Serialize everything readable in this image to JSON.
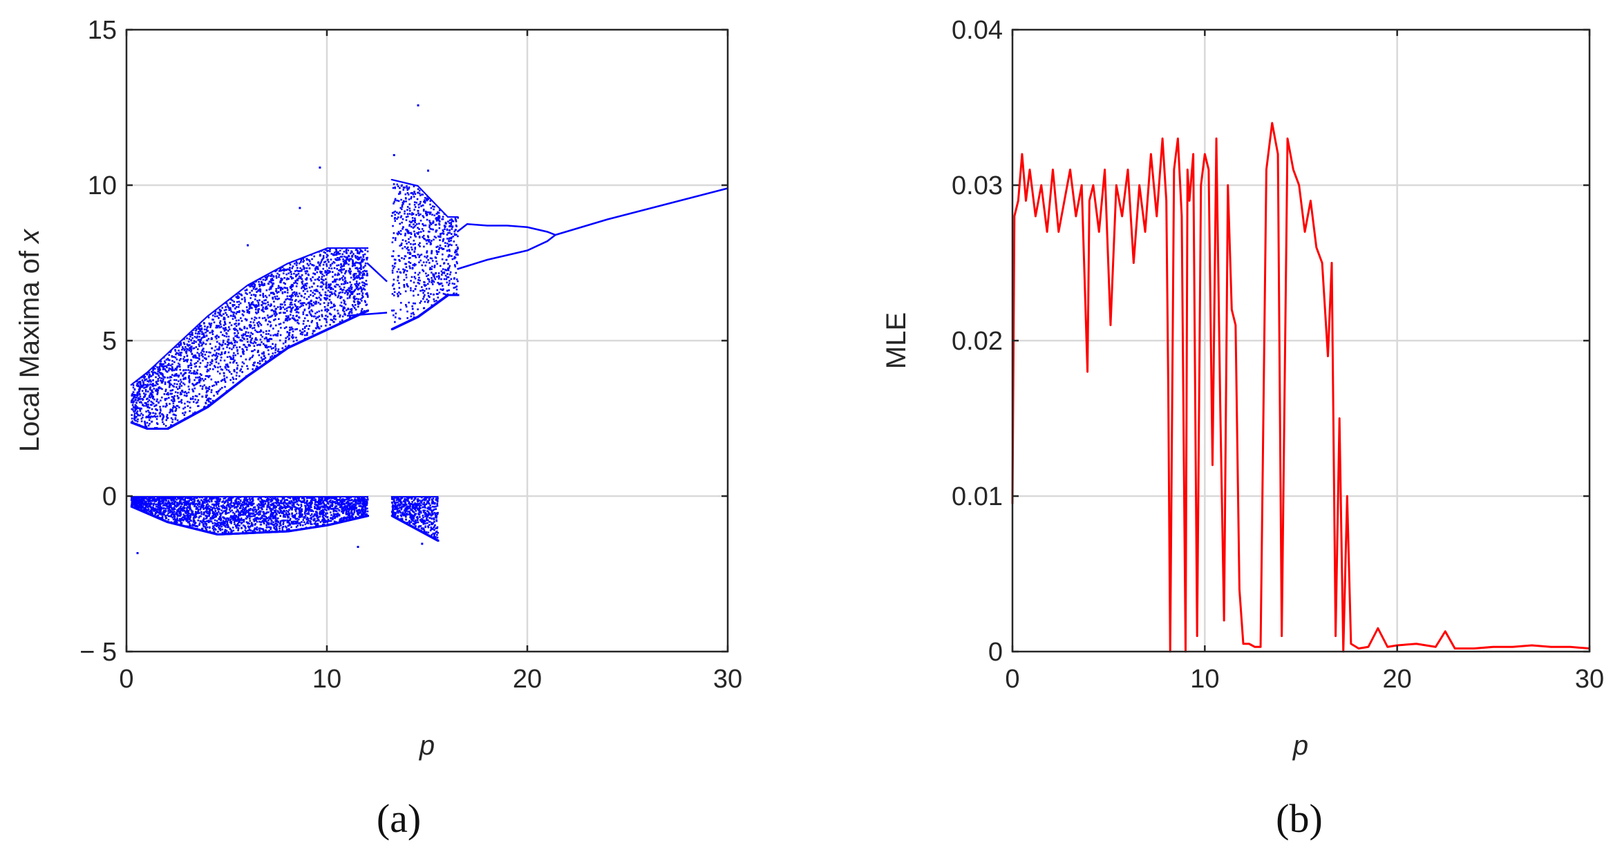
{
  "chart_data": [
    {
      "type": "scatter",
      "panel": "a",
      "caption": "(a)",
      "title": "",
      "xlabel": "p",
      "ylabel": "Local Maxima of",
      "ylabel_var": "x",
      "xlim": [
        0,
        30
      ],
      "ylim": [
        -5,
        15
      ],
      "xticks": [
        0,
        10,
        20,
        30
      ],
      "yticks": [
        -5,
        0,
        5,
        10,
        15
      ],
      "ytick_labels": [
        "− 5",
        "0",
        "5",
        "10",
        "15"
      ],
      "grid": true,
      "color": "#0000ff",
      "series": [
        {
          "branch": "upper_chaotic_band",
          "x_range": [
            0.2,
            12.0
          ],
          "lower_edge": [
            [
              0.2,
              2.4
            ],
            [
              1.0,
              2.2
            ],
            [
              2.0,
              2.2
            ],
            [
              4.0,
              2.9
            ],
            [
              6.0,
              3.9
            ],
            [
              8.0,
              4.8
            ],
            [
              10.0,
              5.4
            ],
            [
              12.0,
              6.0
            ]
          ],
          "upper_edge": [
            [
              0.2,
              3.6
            ],
            [
              1.0,
              4.0
            ],
            [
              2.0,
              4.6
            ],
            [
              4.0,
              5.8
            ],
            [
              6.0,
              6.8
            ],
            [
              8.0,
              7.5
            ],
            [
              10.0,
              8.0
            ],
            [
              12.0,
              8.0
            ]
          ]
        },
        {
          "branch": "lower_chaotic_band",
          "x_range": [
            0.2,
            12.0
          ],
          "upper_edge": [
            [
              0.2,
              0.0
            ],
            [
              12.0,
              0.0
            ]
          ],
          "lower_edge": [
            [
              0.2,
              -0.3
            ],
            [
              2.0,
              -0.8
            ],
            [
              4.5,
              -1.2
            ],
            [
              8.0,
              -1.1
            ],
            [
              10.0,
              -0.9
            ],
            [
              12.0,
              -0.6
            ]
          ]
        },
        {
          "branch": "periodic_window_upper",
          "points": [
            [
              12.0,
              7.5
            ],
            [
              12.5,
              7.2
            ],
            [
              13.0,
              6.9
            ]
          ]
        },
        {
          "branch": "periodic_window_middle",
          "points": [
            [
              11.0,
              5.8
            ],
            [
              12.0,
              5.85
            ],
            [
              13.0,
              5.9
            ]
          ]
        },
        {
          "branch": "second_chaotic_band_upper",
          "x_range": [
            13.2,
            16.5
          ],
          "lower_edge": [
            [
              13.2,
              5.4
            ],
            [
              14.5,
              5.8
            ],
            [
              16.0,
              6.5
            ]
          ],
          "upper_edge": [
            [
              13.2,
              10.2
            ],
            [
              14.5,
              10.0
            ],
            [
              16.0,
              9.0
            ]
          ]
        },
        {
          "branch": "second_chaotic_band_lower",
          "x_range": [
            13.2,
            15.5
          ],
          "upper_edge": [
            [
              13.2,
              0.0
            ],
            [
              15.5,
              0.0
            ]
          ],
          "lower_edge": [
            [
              13.2,
              -0.6
            ],
            [
              15.5,
              -1.4
            ]
          ]
        },
        {
          "branch": "period_doubling_upper",
          "points": [
            [
              16.5,
              8.5
            ],
            [
              17.0,
              8.75
            ],
            [
              18.0,
              8.7
            ],
            [
              19.0,
              8.7
            ],
            [
              20.0,
              8.65
            ],
            [
              21.0,
              8.5
            ],
            [
              21.4,
              8.4
            ]
          ]
        },
        {
          "branch": "period_doubling_lower",
          "points": [
            [
              16.5,
              7.3
            ],
            [
              17.0,
              7.4
            ],
            [
              18.0,
              7.6
            ],
            [
              19.0,
              7.75
            ],
            [
              20.0,
              7.9
            ],
            [
              21.0,
              8.2
            ],
            [
              21.4,
              8.4
            ]
          ]
        },
        {
          "branch": "period_one",
          "points": [
            [
              21.4,
              8.4
            ],
            [
              24.0,
              8.9
            ],
            [
              27.0,
              9.4
            ],
            [
              30.0,
              9.9
            ]
          ]
        }
      ],
      "outliers": [
        [
          9.6,
          10.6
        ],
        [
          8.6,
          9.3
        ],
        [
          14.5,
          12.6
        ],
        [
          13.3,
          11.0
        ],
        [
          6.0,
          8.1
        ],
        [
          15.0,
          10.5
        ],
        [
          0.5,
          -1.8
        ],
        [
          11.5,
          -1.6
        ],
        [
          14.7,
          -1.5
        ]
      ]
    },
    {
      "type": "line",
      "panel": "b",
      "caption": "(b)",
      "title": "",
      "xlabel": "p",
      "ylabel": "MLE",
      "xlim": [
        0,
        30
      ],
      "ylim": [
        0,
        0.04
      ],
      "xticks": [
        0,
        10,
        20,
        30
      ],
      "yticks": [
        0,
        0.01,
        0.02,
        0.03,
        0.04
      ],
      "ytick_labels": [
        "0",
        "0.01",
        "0.02",
        "0.03",
        "0.04"
      ],
      "grid": true,
      "color": "#ff0000",
      "series": [
        {
          "x": [
            0.0,
            0.1,
            0.3,
            0.5,
            0.7,
            0.9,
            1.2,
            1.5,
            1.8,
            2.1,
            2.4,
            2.7,
            3.0,
            3.3,
            3.6,
            3.9,
            4.0,
            4.2,
            4.5,
            4.8,
            5.1,
            5.4,
            5.7,
            6.0,
            6.3,
            6.6,
            6.9,
            7.2,
            7.5,
            7.8,
            8.0,
            8.1,
            8.2,
            8.4,
            8.6,
            8.8,
            9.0,
            9.1,
            9.2,
            9.4,
            9.6,
            9.8,
            10.0,
            10.2,
            10.4,
            10.6,
            10.8,
            11.0,
            11.2,
            11.4,
            11.6,
            11.8,
            12.0,
            12.3,
            12.6,
            12.9,
            13.2,
            13.5,
            13.8,
            14.0,
            14.3,
            14.6,
            14.9,
            15.2,
            15.5,
            15.8,
            16.1,
            16.4,
            16.6,
            16.8,
            17.0,
            17.2,
            17.4,
            17.6,
            18.0,
            18.5,
            19.0,
            19.5,
            20.0,
            21.0,
            22.0,
            22.5,
            23.0,
            24.0,
            25.0,
            26.0,
            27.0,
            28.0,
            29.0,
            30.0
          ],
          "y": [
            0.0095,
            0.028,
            0.029,
            0.032,
            0.029,
            0.031,
            0.028,
            0.03,
            0.027,
            0.031,
            0.027,
            0.029,
            0.031,
            0.028,
            0.03,
            0.018,
            0.029,
            0.03,
            0.027,
            0.031,
            0.021,
            0.03,
            0.028,
            0.031,
            0.025,
            0.03,
            0.027,
            0.032,
            0.028,
            0.033,
            0.029,
            0.017,
            0.0,
            0.031,
            0.033,
            0.028,
            0.0,
            0.031,
            0.029,
            0.032,
            0.001,
            0.03,
            0.032,
            0.031,
            0.012,
            0.033,
            0.016,
            0.002,
            0.03,
            0.022,
            0.021,
            0.004,
            0.0005,
            0.0005,
            0.0003,
            0.0003,
            0.031,
            0.034,
            0.032,
            0.001,
            0.033,
            0.031,
            0.03,
            0.027,
            0.029,
            0.026,
            0.025,
            0.019,
            0.025,
            0.001,
            0.015,
            0.0,
            0.01,
            0.0005,
            0.0002,
            0.0003,
            0.0015,
            0.0003,
            0.0004,
            0.0005,
            0.0003,
            0.0013,
            0.0002,
            0.0002,
            0.0003,
            0.0003,
            0.0004,
            0.0003,
            0.0003,
            0.0002
          ]
        }
      ]
    }
  ]
}
